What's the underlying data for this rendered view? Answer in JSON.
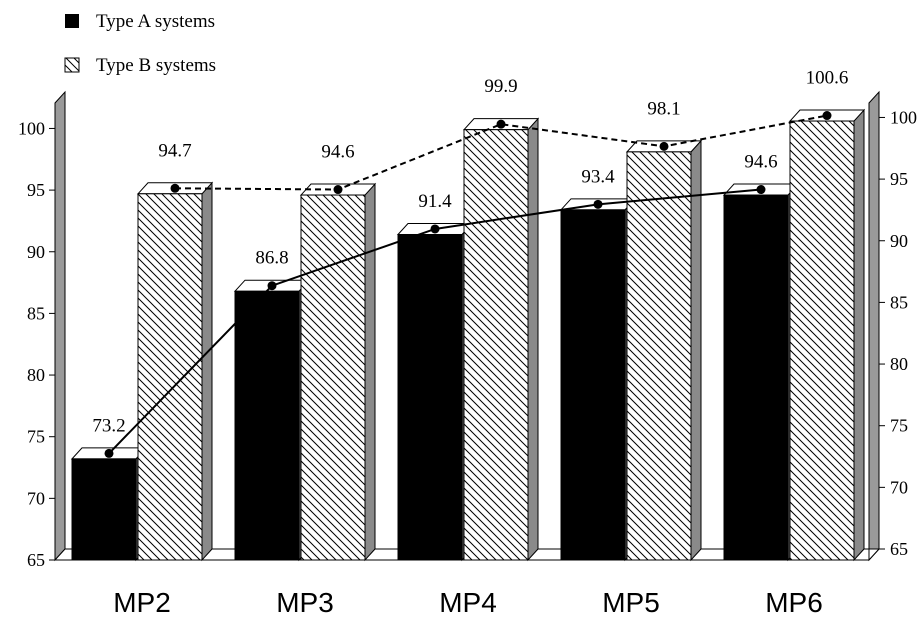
{
  "chart_data": {
    "type": "bar",
    "categories": [
      "MP2",
      "MP3",
      "MP4",
      "MP5",
      "MP6"
    ],
    "series": [
      {
        "name": "Type A systems",
        "values": [
          73.2,
          86.8,
          91.4,
          93.4,
          94.6
        ],
        "value_labels": [
          "73.2",
          "86.8",
          "91.4",
          "93.4",
          "94.6"
        ],
        "fill": "solid",
        "color": "#000000",
        "trend_line": "solid"
      },
      {
        "name": "Type B systems",
        "values": [
          94.7,
          94.6,
          99.9,
          98.1,
          100.6
        ],
        "value_labels": [
          "94.7",
          "94.6",
          "99.9",
          "98.1",
          "100.6"
        ],
        "fill": "hatched",
        "color": "#ffffff",
        "trend_line": "dashed"
      }
    ],
    "ylim": [
      65,
      101
    ],
    "yticks": [
      "65",
      "70",
      "75",
      "80",
      "85",
      "90",
      "95",
      "100"
    ],
    "y_axes": "left and right (mirrored)",
    "legend_position": "top-left",
    "style": "3D bars with markers and connecting lines",
    "grid": false
  }
}
